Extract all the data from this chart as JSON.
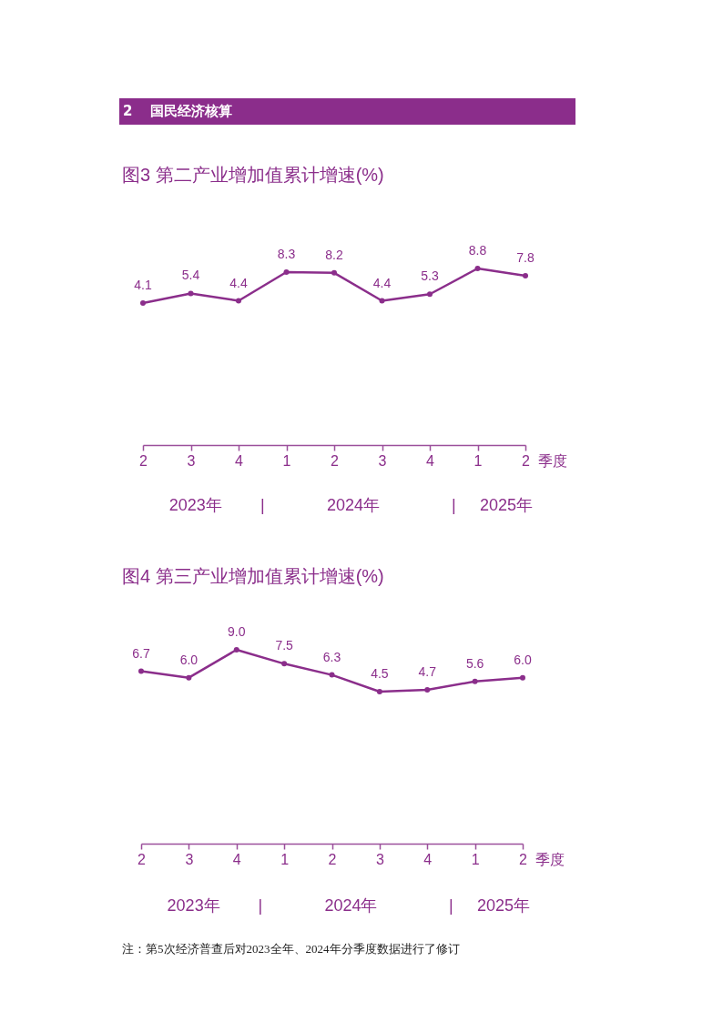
{
  "chart_data": [
    {
      "type": "other",
      "title": "2 国民经济核算"
    },
    {
      "type": "line",
      "title": "图3 第二产业增加值累计增速(%)",
      "xlabel": "季度",
      "categories": [
        "2",
        "3",
        "4",
        "1",
        "2",
        "3",
        "4",
        "1",
        "2"
      ],
      "values": [
        4.1,
        5.4,
        4.4,
        8.3,
        8.2,
        4.4,
        5.3,
        8.8,
        7.8
      ],
      "value_labels": [
        "4.1",
        "5.4",
        "4.4",
        "8.3",
        "8.2",
        "4.4",
        "5.3",
        "8.8",
        "7.8"
      ],
      "color": "#8b2e8b",
      "marker": "circle",
      "line_style": "solid",
      "tick_labels": "x",
      "annotations": [
        "2023年",
        "|",
        "2024年",
        "|",
        "2025年"
      ]
    },
    {
      "type": "line",
      "title": "图4 第三产业增加值累计增速(%)",
      "xlabel": "季度",
      "categories": [
        "2",
        "3",
        "4",
        "1",
        "2",
        "3",
        "4",
        "1",
        "2"
      ],
      "values": [
        6.7,
        6.0,
        9.0,
        7.5,
        6.3,
        4.5,
        4.7,
        5.6,
        6.0
      ],
      "value_labels": [
        "6.7",
        "6.0",
        "9.0",
        "7.5",
        "6.3",
        "4.5",
        "4.7",
        "5.6",
        "6.0"
      ],
      "color": "#8b2e8b",
      "marker": "circle",
      "line_style": "solid",
      "tick_labels": "x",
      "annotations": [
        "2023年",
        "|",
        "2024年",
        "|",
        "2025年",
        "注：第5次经济普查后对2023全年、2024年分季度数据进行了修订"
      ]
    }
  ]
}
